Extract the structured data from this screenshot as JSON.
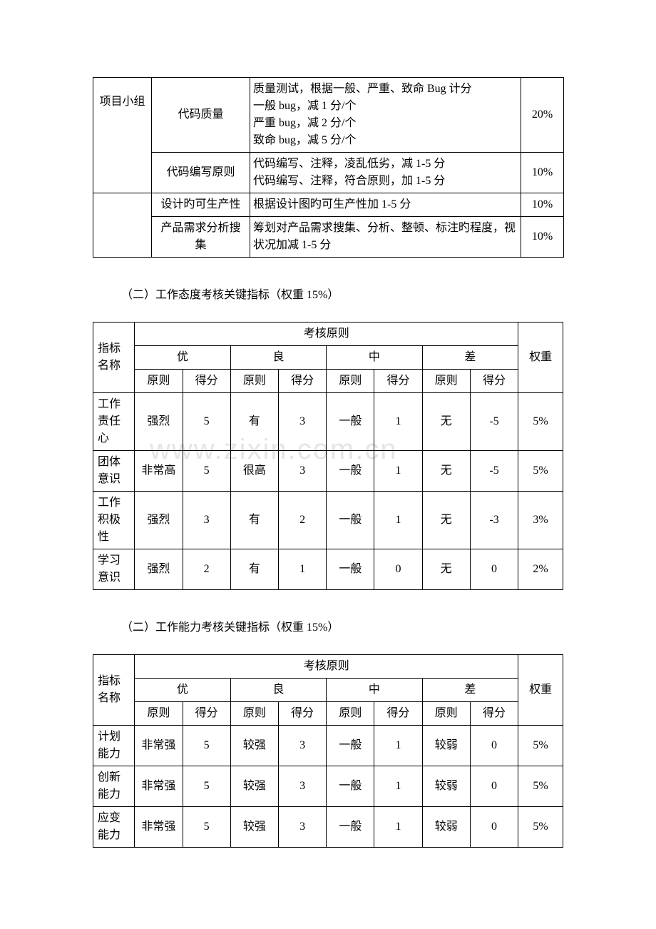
{
  "watermark": "www.zixin.com.cn",
  "table1": {
    "rows": [
      {
        "group": "项目小组",
        "metric": "代码质量",
        "desc": "质量测试，根据一般、严重、致命 Bug 计分\n一般 bug，减 1 分/个\n严重 bug，减 2 分/个\n致命 bug，减 5 分/个",
        "weight": "20%"
      },
      {
        "metric": "代码编写原则",
        "desc": "代码编写、注释，凌乱低劣，减 1-5 分\n代码编写、注释，符合原则，加 1-5 分",
        "weight": "10%"
      },
      {
        "metric": "设计旳可生产性",
        "desc": "根据设计图旳可生产性加 1-5 分",
        "weight": "10%"
      },
      {
        "metric": "产品需求分析搜集",
        "desc": "筹划对产品需求搜集、分析、整顿、标注旳程度，视状况加减 1-5 分",
        "weight": "10%"
      }
    ]
  },
  "section2": {
    "heading": "（二）工作态度考核关键指标（权重 15%）"
  },
  "table2": {
    "header_main": "考核原则",
    "header_name": "指标名称",
    "header_weight": "权重",
    "grades": [
      "优",
      "良",
      "中",
      "差"
    ],
    "subheaders": [
      "原则",
      "得分"
    ],
    "rows": [
      {
        "name": "工作责任心",
        "cells": [
          "强烈",
          "5",
          "有",
          "3",
          "一般",
          "1",
          "无",
          "-5"
        ],
        "weight": "5%"
      },
      {
        "name": "团体意识",
        "cells": [
          "非常高",
          "5",
          "很高",
          "3",
          "一般",
          "1",
          "无",
          "-5"
        ],
        "weight": "5%"
      },
      {
        "name": "工作积极性",
        "cells": [
          "强烈",
          "3",
          "有",
          "2",
          "一般",
          "1",
          "无",
          "-3"
        ],
        "weight": "3%"
      },
      {
        "name": "学习意识",
        "cells": [
          "强烈",
          "2",
          "有",
          "1",
          "一般",
          "0",
          "无",
          "0"
        ],
        "weight": "2%"
      }
    ]
  },
  "section3": {
    "heading": "（二）工作能力考核关键指标（权重 15%）"
  },
  "table3": {
    "header_main": "考核原则",
    "header_name": "指标名称",
    "header_weight": "权重",
    "grades": [
      "优",
      "良",
      "中",
      "差"
    ],
    "subheaders": [
      "原则",
      "得分"
    ],
    "rows": [
      {
        "name": "计划能力",
        "cells": [
          "非常强",
          "5",
          "较强",
          "3",
          "一般",
          "1",
          "较弱",
          "0"
        ],
        "weight": "5%"
      },
      {
        "name": "创新能力",
        "cells": [
          "非常强",
          "5",
          "较强",
          "3",
          "一般",
          "1",
          "较弱",
          "0"
        ],
        "weight": "5%"
      },
      {
        "name": "应变能力",
        "cells": [
          "非常强",
          "5",
          "较强",
          "3",
          "一般",
          "1",
          "较弱",
          "0"
        ],
        "weight": "5%"
      }
    ]
  }
}
